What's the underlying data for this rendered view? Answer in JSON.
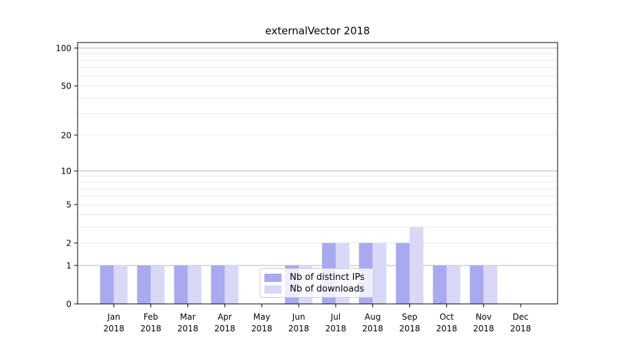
{
  "figure": {
    "title": "externalVector 2018"
  },
  "chart_data": {
    "type": "bar",
    "title": "externalVector 2018",
    "categories": [
      "Jan",
      "Feb",
      "Mar",
      "Apr",
      "May",
      "Jun",
      "Jul",
      "Aug",
      "Sep",
      "Oct",
      "Nov",
      "Dec"
    ],
    "category_year": "2018",
    "series": [
      {
        "name": "Nb of distinct IPs",
        "color": "#a9a9ef",
        "values": [
          1,
          1,
          1,
          1,
          0,
          1,
          2,
          2,
          2,
          1,
          1,
          0
        ]
      },
      {
        "name": "Nb of downloads",
        "color": "#d9d9f7",
        "values": [
          1,
          1,
          1,
          1,
          0,
          1,
          2,
          2,
          3,
          1,
          1,
          0
        ]
      }
    ],
    "xlabel": "",
    "ylabel": "",
    "yscale": "log1p",
    "ylim": [
      0,
      110
    ],
    "y_tick_labels": [
      "0",
      "1",
      "2",
      "5",
      "10",
      "20",
      "50",
      "100"
    ],
    "y_tick_values": [
      0,
      1,
      2,
      5,
      10,
      20,
      50,
      100
    ],
    "y_minor_gridlines": [
      2,
      3,
      4,
      5,
      6,
      7,
      8,
      9,
      20,
      30,
      40,
      50,
      60,
      70,
      80,
      90
    ],
    "y_major_gridlines": [
      1,
      10,
      100
    ],
    "grid": true,
    "legend_position": "lower center"
  },
  "colors": {
    "grid_minor": "#e8e8e8",
    "grid_major": "#b4b4b4",
    "axis": "#000000",
    "background": "#ffffff"
  }
}
